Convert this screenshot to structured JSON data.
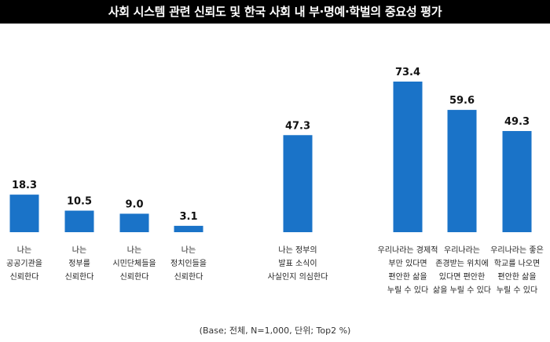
{
  "header": {
    "title": "사회 시스템 관련 신뢰도 및 한국 사회 내 부·명예·학벌의 중요성 평가"
  },
  "footnote": "(Base; 전체, N=1,000, 단위; Top2 %)",
  "colors": {
    "bar": "#1a73c8",
    "title_bg": "#000000",
    "title_text": "#ffffff"
  },
  "chart_data": {
    "type": "bar",
    "title": "사회 시스템 관련 신뢰도 및 한국 사회 내 부·명예·학벌의 중요성 평가",
    "ylim": [
      0,
      80
    ],
    "grid": false,
    "legend": "none",
    "categories": [
      "나는 공공기관을 신뢰한다",
      "나는 정부를 신뢰한다",
      "나는 시민단체들을 신뢰한다",
      "나는 정치인들을 신뢰한다",
      "나는 정부의 발표 소식이 사실인지 의심한다",
      "우리나라는 경제적 부만 있다면 편안한 삶을 누릴 수 있다",
      "우리나라는 존경받는 위치에 있다면 편안한 삶을 누릴 수 있다",
      "우리나라는 좋은 학교를 나오면 편안한 삶을 누릴 수 있다"
    ],
    "category_lines": [
      [
        "나는",
        "공공기관을",
        "신뢰한다"
      ],
      [
        "나는",
        "정부를",
        "신뢰한다"
      ],
      [
        "나는",
        "시민단체들을",
        "신뢰한다"
      ],
      [
        "나는",
        "정치인들을",
        "신뢰한다"
      ],
      [
        "나는 정부의",
        "발표 소식이",
        "사실인지 의심한다"
      ],
      [
        "우리나라는 경제적",
        "부만 있다면",
        "편안한 삶을",
        "누릴 수 있다"
      ],
      [
        "우리나라는",
        "존경받는 위치에",
        "있다면 편안한",
        "삶을 누릴 수 있다"
      ],
      [
        "우리나라는 좋은",
        "학교를 나오면",
        "편안한 삶을",
        "누릴 수 있다"
      ]
    ],
    "values": [
      18.3,
      10.5,
      9.0,
      3.1,
      47.3,
      73.4,
      59.6,
      49.3
    ],
    "value_labels": [
      "18.3",
      "10.5",
      "9.0",
      "3.1",
      "47.3",
      "73.4",
      "59.6",
      "49.3"
    ]
  }
}
